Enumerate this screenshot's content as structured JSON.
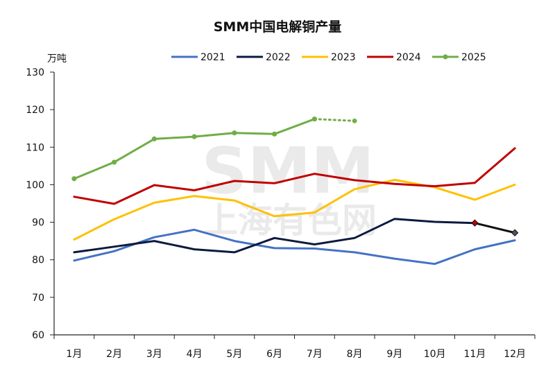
{
  "chart_data": {
    "type": "line",
    "title": "SMM中国电解铜产量",
    "unit": "万吨",
    "ylim": [
      60,
      130
    ],
    "yticks": [
      60,
      70,
      80,
      90,
      100,
      110,
      120,
      130
    ],
    "grid": false,
    "legend_position": "top",
    "categories": [
      "1月",
      "2月",
      "3月",
      "4月",
      "5月",
      "6月",
      "7月",
      "8月",
      "9月",
      "10月",
      "11月",
      "12月"
    ],
    "series": [
      {
        "name": "2021",
        "color": "#4472c4",
        "values": [
          79.8,
          82.3,
          86.0,
          88.0,
          85.0,
          83.1,
          83.0,
          82.0,
          80.3,
          78.9,
          82.8,
          85.2
        ]
      },
      {
        "name": "2022",
        "color": "#0b1a3e",
        "values": [
          82.0,
          83.5,
          85.0,
          82.8,
          82.0,
          85.8,
          84.1,
          85.8,
          90.9,
          90.1,
          89.8,
          null
        ]
      },
      {
        "name": "2023",
        "color": "#ffc000",
        "values": [
          85.4,
          90.8,
          95.2,
          97.0,
          95.8,
          91.6,
          92.6,
          98.8,
          101.3,
          99.3,
          96.0,
          100.0
        ]
      },
      {
        "name": "2024",
        "color": "#c00000",
        "values": [
          96.8,
          94.9,
          99.9,
          98.5,
          101.0,
          100.4,
          102.9,
          101.2,
          100.2,
          99.6,
          100.5,
          109.7
        ]
      },
      {
        "name": "2025",
        "color": "#70ad47",
        "values": [
          101.6,
          106.0,
          112.2,
          112.8,
          113.8,
          113.5,
          117.5,
          null,
          null,
          null,
          null,
          null
        ]
      }
    ],
    "forecast_2022_dec": {
      "name": "2022",
      "color": "#111111",
      "from": 89.8,
      "to": 87.2
    },
    "forecast_2025_aug": {
      "name": "2025",
      "color": "#70ad47",
      "from": 117.5,
      "to": 117.0
    }
  },
  "watermark": {
    "line1": "SMM",
    "line2": "上海有色网"
  }
}
